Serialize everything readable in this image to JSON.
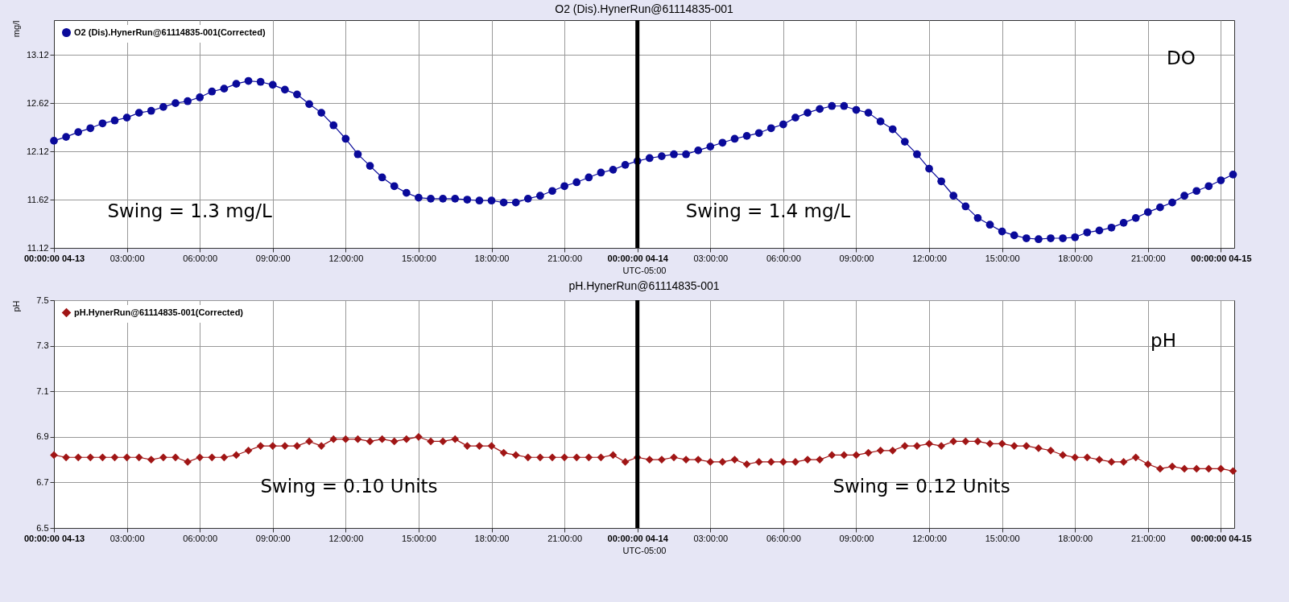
{
  "chart_data": [
    {
      "type": "line",
      "title": "O2 (Dis).HynerRun@61114835-001",
      "xlabel": "UTC-05:00",
      "ylabel": "mg/l",
      "legend": "top left",
      "marker": "circle",
      "line_style": "solid",
      "grid": true,
      "x": [
        "--04-13T00:00",
        "--04-13T00:30",
        "--04-13T01:00",
        "--04-13T01:30",
        "--04-13T02:00",
        "--04-13T02:30",
        "--04-13T03:00",
        "--04-13T03:30",
        "--04-13T04:00",
        "--04-13T04:30",
        "--04-13T05:00",
        "--04-13T05:30",
        "--04-13T06:00",
        "--04-13T06:30",
        "--04-13T07:00",
        "--04-13T07:30",
        "--04-13T08:00",
        "--04-13T08:30",
        "--04-13T09:00",
        "--04-13T09:30",
        "--04-13T10:00",
        "--04-13T10:30",
        "--04-13T11:00",
        "--04-13T11:30",
        "--04-13T12:00",
        "--04-13T12:30",
        "--04-13T13:00",
        "--04-13T13:30",
        "--04-13T14:00",
        "--04-13T14:30",
        "--04-13T15:00",
        "--04-13T15:30",
        "--04-13T16:00",
        "--04-13T16:30",
        "--04-13T17:00",
        "--04-13T17:30",
        "--04-13T18:00",
        "--04-13T18:30",
        "--04-13T19:00",
        "--04-13T19:30",
        "--04-13T20:00",
        "--04-13T20:30",
        "--04-13T21:00",
        "--04-13T21:30",
        "--04-13T22:00",
        "--04-13T22:30",
        "--04-13T23:00",
        "--04-13T23:30",
        "--04-14T00:00",
        "--04-14T00:30",
        "--04-14T01:00",
        "--04-14T01:30",
        "--04-14T02:00",
        "--04-14T02:30",
        "--04-14T03:00",
        "--04-14T03:30",
        "--04-14T04:00",
        "--04-14T04:30",
        "--04-14T05:00",
        "--04-14T05:30",
        "--04-14T06:00",
        "--04-14T06:30",
        "--04-14T07:00",
        "--04-14T07:30",
        "--04-14T08:00",
        "--04-14T08:30",
        "--04-14T09:00",
        "--04-14T09:30",
        "--04-14T10:00",
        "--04-14T10:30",
        "--04-14T11:00",
        "--04-14T11:30",
        "--04-14T12:00",
        "--04-14T12:30",
        "--04-14T13:00",
        "--04-14T13:30",
        "--04-14T14:00",
        "--04-14T14:30",
        "--04-14T15:00",
        "--04-14T15:30",
        "--04-14T16:00",
        "--04-14T16:30",
        "--04-14T17:00",
        "--04-14T17:30",
        "--04-14T18:00",
        "--04-14T18:30",
        "--04-14T19:00",
        "--04-14T19:30",
        "--04-14T20:00",
        "--04-14T20:30",
        "--04-14T21:00",
        "--04-14T21:30",
        "--04-14T22:00",
        "--04-14T22:30",
        "--04-14T23:00",
        "--04-14T23:30",
        "--04-15T00:00",
        "--04-15T00:30"
      ],
      "series": [
        {
          "name": "O2 (Dis).HynerRun@61114835-001(Corrected)",
          "color": "#0a0a9a",
          "values": [
            12.23,
            12.27,
            12.32,
            12.36,
            12.41,
            12.44,
            12.47,
            12.52,
            12.54,
            12.58,
            12.62,
            12.64,
            12.68,
            12.74,
            12.77,
            12.82,
            12.85,
            12.84,
            12.81,
            12.76,
            12.71,
            12.61,
            12.52,
            12.39,
            12.25,
            12.09,
            11.97,
            11.85,
            11.76,
            11.69,
            11.64,
            11.63,
            11.63,
            11.63,
            11.62,
            11.61,
            11.61,
            11.59,
            11.59,
            11.63,
            11.66,
            11.71,
            11.76,
            11.8,
            11.85,
            11.9,
            11.93,
            11.98,
            12.02,
            12.05,
            12.07,
            12.09,
            12.09,
            12.13,
            12.17,
            12.21,
            12.25,
            12.28,
            12.31,
            12.36,
            12.4,
            12.47,
            12.52,
            12.56,
            12.59,
            12.59,
            12.55,
            12.52,
            12.43,
            12.35,
            12.22,
            12.09,
            11.94,
            11.81,
            11.66,
            11.55,
            11.43,
            11.36,
            11.29,
            11.25,
            11.22,
            11.21,
            11.22,
            11.22,
            11.23,
            11.28,
            11.3,
            11.33,
            11.38,
            11.43,
            11.49,
            11.54,
            11.59,
            11.66,
            11.71,
            11.76,
            11.82,
            11.88
          ]
        }
      ],
      "xlim": [
        "--04-13T00:00",
        "--04-15T00:33"
      ],
      "xticks": [
        {
          "value": "--04-13T00:00",
          "label": "00:00:00 04-13"
        },
        {
          "value": "--04-13T03:00",
          "label": "03:00:00"
        },
        {
          "value": "--04-13T06:00",
          "label": "06:00:00"
        },
        {
          "value": "--04-13T09:00",
          "label": "09:00:00"
        },
        {
          "value": "--04-13T12:00",
          "label": "12:00:00"
        },
        {
          "value": "--04-13T15:00",
          "label": "15:00:00"
        },
        {
          "value": "--04-13T18:00",
          "label": "18:00:00"
        },
        {
          "value": "--04-13T21:00",
          "label": "21:00:00"
        },
        {
          "value": "--04-14T00:00",
          "label": "00:00:00 04-14"
        },
        {
          "value": "--04-14T03:00",
          "label": "03:00:00"
        },
        {
          "value": "--04-14T06:00",
          "label": "06:00:00"
        },
        {
          "value": "--04-14T09:00",
          "label": "09:00:00"
        },
        {
          "value": "--04-14T12:00",
          "label": "12:00:00"
        },
        {
          "value": "--04-14T15:00",
          "label": "15:00:00"
        },
        {
          "value": "--04-14T18:00",
          "label": "18:00:00"
        },
        {
          "value": "--04-14T21:00",
          "label": "21:00:00"
        },
        {
          "value": "--04-15T00:00",
          "label": "00:00:00 04-15"
        }
      ],
      "ylim": [
        11.12,
        13.48
      ],
      "yticks": [
        11.12,
        11.62,
        12.12,
        12.62,
        13.12
      ],
      "ref_lines": [
        {
          "axis": "x",
          "value": "--04-14T00:00",
          "color": "#000000"
        }
      ],
      "annotations": [
        "DO",
        "Swing = 1.3 mg/L",
        "Swing = 1.4 mg/L"
      ]
    },
    {
      "type": "line",
      "title": "pH.HynerRun@61114835-001",
      "xlabel": "UTC-05:00",
      "ylabel": "pH",
      "legend": "top left",
      "marker": "diamond",
      "line_style": "solid",
      "grid": true,
      "x": [
        "--04-13T00:00",
        "--04-13T00:30",
        "--04-13T01:00",
        "--04-13T01:30",
        "--04-13T02:00",
        "--04-13T02:30",
        "--04-13T03:00",
        "--04-13T03:30",
        "--04-13T04:00",
        "--04-13T04:30",
        "--04-13T05:00",
        "--04-13T05:30",
        "--04-13T06:00",
        "--04-13T06:30",
        "--04-13T07:00",
        "--04-13T07:30",
        "--04-13T08:00",
        "--04-13T08:30",
        "--04-13T09:00",
        "--04-13T09:30",
        "--04-13T10:00",
        "--04-13T10:30",
        "--04-13T11:00",
        "--04-13T11:30",
        "--04-13T12:00",
        "--04-13T12:30",
        "--04-13T13:00",
        "--04-13T13:30",
        "--04-13T14:00",
        "--04-13T14:30",
        "--04-13T15:00",
        "--04-13T15:30",
        "--04-13T16:00",
        "--04-13T16:30",
        "--04-13T17:00",
        "--04-13T17:30",
        "--04-13T18:00",
        "--04-13T18:30",
        "--04-13T19:00",
        "--04-13T19:30",
        "--04-13T20:00",
        "--04-13T20:30",
        "--04-13T21:00",
        "--04-13T21:30",
        "--04-13T22:00",
        "--04-13T22:30",
        "--04-13T23:00",
        "--04-13T23:30",
        "--04-14T00:00",
        "--04-14T00:30",
        "--04-14T01:00",
        "--04-14T01:30",
        "--04-14T02:00",
        "--04-14T02:30",
        "--04-14T03:00",
        "--04-14T03:30",
        "--04-14T04:00",
        "--04-14T04:30",
        "--04-14T05:00",
        "--04-14T05:30",
        "--04-14T06:00",
        "--04-14T06:30",
        "--04-14T07:00",
        "--04-14T07:30",
        "--04-14T08:00",
        "--04-14T08:30",
        "--04-14T09:00",
        "--04-14T09:30",
        "--04-14T10:00",
        "--04-14T10:30",
        "--04-14T11:00",
        "--04-14T11:30",
        "--04-14T12:00",
        "--04-14T12:30",
        "--04-14T13:00",
        "--04-14T13:30",
        "--04-14T14:00",
        "--04-14T14:30",
        "--04-14T15:00",
        "--04-14T15:30",
        "--04-14T16:00",
        "--04-14T16:30",
        "--04-14T17:00",
        "--04-14T17:30",
        "--04-14T18:00",
        "--04-14T18:30",
        "--04-14T19:00",
        "--04-14T19:30",
        "--04-14T20:00",
        "--04-14T20:30",
        "--04-14T21:00",
        "--04-14T21:30",
        "--04-14T22:00",
        "--04-14T22:30",
        "--04-14T23:00",
        "--04-14T23:30",
        "--04-15T00:00",
        "--04-15T00:30"
      ],
      "series": [
        {
          "name": "pH.HynerRun@61114835-001(Corrected)",
          "color": "#a01515",
          "values": [
            6.82,
            6.81,
            6.81,
            6.81,
            6.81,
            6.81,
            6.81,
            6.81,
            6.8,
            6.81,
            6.81,
            6.79,
            6.81,
            6.81,
            6.81,
            6.82,
            6.84,
            6.86,
            6.86,
            6.86,
            6.86,
            6.88,
            6.86,
            6.89,
            6.89,
            6.89,
            6.88,
            6.89,
            6.88,
            6.89,
            6.9,
            6.88,
            6.88,
            6.89,
            6.86,
            6.86,
            6.86,
            6.83,
            6.82,
            6.81,
            6.81,
            6.81,
            6.81,
            6.81,
            6.81,
            6.81,
            6.82,
            6.79,
            6.81,
            6.8,
            6.8,
            6.81,
            6.8,
            6.8,
            6.79,
            6.79,
            6.8,
            6.78,
            6.79,
            6.79,
            6.79,
            6.79,
            6.8,
            6.8,
            6.82,
            6.82,
            6.82,
            6.83,
            6.84,
            6.84,
            6.86,
            6.86,
            6.87,
            6.86,
            6.88,
            6.88,
            6.88,
            6.87,
            6.87,
            6.86,
            6.86,
            6.85,
            6.84,
            6.82,
            6.81,
            6.81,
            6.8,
            6.79,
            6.79,
            6.81,
            6.78,
            6.76,
            6.77,
            6.76,
            6.76,
            6.76,
            6.76,
            6.75
          ]
        }
      ],
      "xlim": [
        "--04-13T00:00",
        "--04-15T00:33"
      ],
      "xticks": [
        {
          "value": "--04-13T00:00",
          "label": "00:00:00 04-13"
        },
        {
          "value": "--04-13T03:00",
          "label": "03:00:00"
        },
        {
          "value": "--04-13T06:00",
          "label": "06:00:00"
        },
        {
          "value": "--04-13T09:00",
          "label": "09:00:00"
        },
        {
          "value": "--04-13T12:00",
          "label": "12:00:00"
        },
        {
          "value": "--04-13T15:00",
          "label": "15:00:00"
        },
        {
          "value": "--04-13T18:00",
          "label": "18:00:00"
        },
        {
          "value": "--04-13T21:00",
          "label": "21:00:00"
        },
        {
          "value": "--04-14T00:00",
          "label": "00:00:00 04-14"
        },
        {
          "value": "--04-14T03:00",
          "label": "03:00:00"
        },
        {
          "value": "--04-14T06:00",
          "label": "06:00:00"
        },
        {
          "value": "--04-14T09:00",
          "label": "09:00:00"
        },
        {
          "value": "--04-14T12:00",
          "label": "12:00:00"
        },
        {
          "value": "--04-14T15:00",
          "label": "15:00:00"
        },
        {
          "value": "--04-14T18:00",
          "label": "18:00:00"
        },
        {
          "value": "--04-14T21:00",
          "label": "21:00:00"
        },
        {
          "value": "--04-15T00:00",
          "label": "00:00:00 04-15"
        }
      ],
      "ylim": [
        6.5,
        7.5
      ],
      "yticks": [
        6.5,
        6.7,
        6.9,
        7.1,
        7.3,
        7.5
      ],
      "ref_lines": [
        {
          "axis": "x",
          "value": "--04-14T00:00",
          "color": "#000000"
        }
      ],
      "annotations": [
        "pH",
        "Swing = 0.10 Units",
        "Swing = 0.12 Units"
      ]
    }
  ]
}
